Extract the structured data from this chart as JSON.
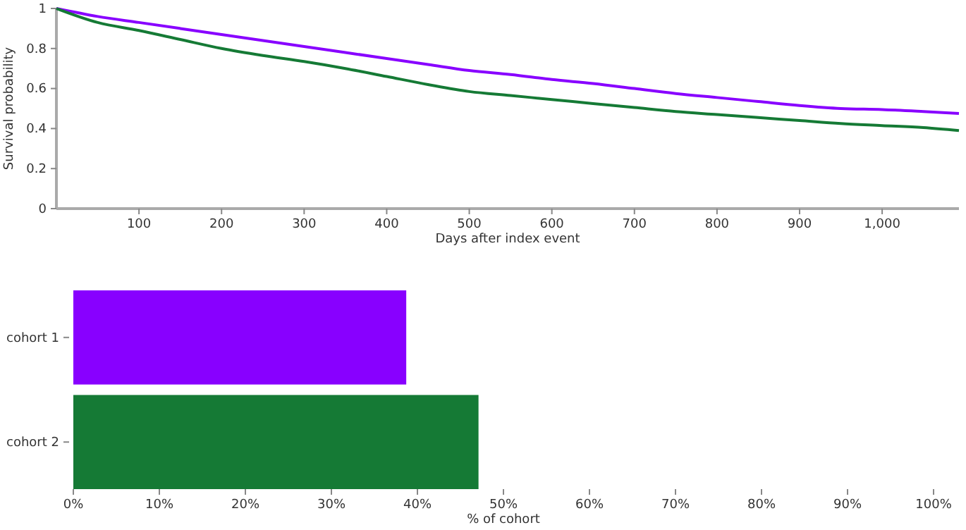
{
  "chart_data": [
    {
      "type": "line",
      "ylabel": "Survival probability",
      "xlabel": "Days after index event",
      "xlim": [
        0,
        1093
      ],
      "ylim": [
        0,
        1
      ],
      "xticks": [
        100,
        200,
        300,
        400,
        500,
        600,
        700,
        800,
        900,
        {
          "value": 1000,
          "label": "1,000"
        }
      ],
      "yticks": [
        0,
        0.2,
        0.4,
        0.6,
        0.8,
        1
      ],
      "series": [
        {
          "color": "#8800ff",
          "x": [
            0,
            50,
            100,
            150,
            200,
            250,
            300,
            350,
            400,
            450,
            500,
            550,
            600,
            650,
            700,
            750,
            800,
            850,
            900,
            950,
            1000,
            1050,
            1093
          ],
          "values": [
            1,
            0.96,
            0.93,
            0.9,
            0.87,
            0.84,
            0.81,
            0.78,
            0.75,
            0.72,
            0.69,
            0.67,
            0.645,
            0.625,
            0.6,
            0.575,
            0.555,
            0.535,
            0.515,
            0.5,
            0.495,
            0.485,
            0.475
          ]
        },
        {
          "color": "#157a35",
          "x": [
            0,
            50,
            100,
            150,
            200,
            250,
            300,
            350,
            400,
            450,
            500,
            550,
            600,
            650,
            700,
            750,
            800,
            850,
            900,
            950,
            1000,
            1050,
            1093
          ],
          "values": [
            1,
            0.93,
            0.89,
            0.845,
            0.8,
            0.765,
            0.735,
            0.7,
            0.66,
            0.62,
            0.585,
            0.565,
            0.545,
            0.525,
            0.505,
            0.485,
            0.47,
            0.455,
            0.44,
            0.425,
            0.415,
            0.405,
            0.39
          ]
        }
      ]
    },
    {
      "type": "bar",
      "orientation": "horizontal",
      "xlabel": "% of cohort",
      "categories": [
        "cohort 1",
        "cohort 2"
      ],
      "values": [
        38.7,
        47.1
      ],
      "colors": [
        "#8800ff",
        "#157a35"
      ],
      "xlim": [
        0,
        100
      ],
      "xticks": [
        {
          "value": 0,
          "label": "0%"
        },
        {
          "value": 10,
          "label": "10%"
        },
        {
          "value": 20,
          "label": "20%"
        },
        {
          "value": 30,
          "label": "30%"
        },
        {
          "value": 40,
          "label": "40%"
        },
        {
          "value": 50,
          "label": "50%"
        },
        {
          "value": 60,
          "label": "60%"
        },
        {
          "value": 70,
          "label": "70%"
        },
        {
          "value": 80,
          "label": "80%"
        },
        {
          "value": 90,
          "label": "90%"
        },
        {
          "value": 100,
          "label": "100%"
        }
      ]
    }
  ]
}
